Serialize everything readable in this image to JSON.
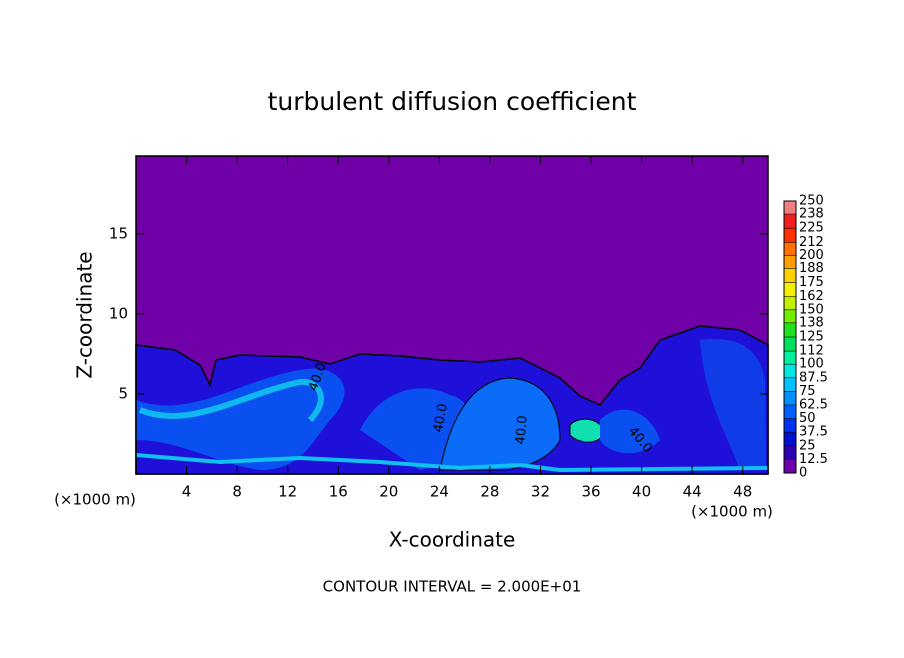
{
  "chart_data": {
    "type": "contour",
    "title": "turbulent diffusion coefficient",
    "x_label": "X-coordinate",
    "y_label": "Z-coordinate",
    "x_unit": "(×1000 m)",
    "y_unit": "(×1000 m)",
    "footer": "CONTOUR INTERVAL = 2.000E+01",
    "contour_labels": [
      "40.0",
      "40.0",
      "40.0",
      "40.0"
    ],
    "xlim": [
      0,
      50
    ],
    "xticks": [
      4,
      8,
      12,
      16,
      20,
      24,
      28,
      32,
      36,
      40,
      44,
      48
    ],
    "ylim": [
      0,
      20
    ],
    "yticks": [
      5,
      10,
      15
    ],
    "colorbar_levels": [
      0,
      12.5,
      25,
      37.5,
      50,
      62.5,
      75,
      87.5,
      100,
      112,
      125,
      138,
      150,
      162,
      175,
      188,
      200,
      212,
      225,
      238,
      250
    ],
    "colorbar_colors": [
      "#7000a8",
      "#2a00b0",
      "#0010d0",
      "#0030f0",
      "#0060ff",
      "#0090ff",
      "#00c0ff",
      "#00e8e0",
      "#00f0a0",
      "#00e060",
      "#20e020",
      "#70f000",
      "#c0f000",
      "#f0f000",
      "#ffd000",
      "#ffa000",
      "#ff7000",
      "#ff3000",
      "#f02020",
      "#f08080"
    ]
  }
}
